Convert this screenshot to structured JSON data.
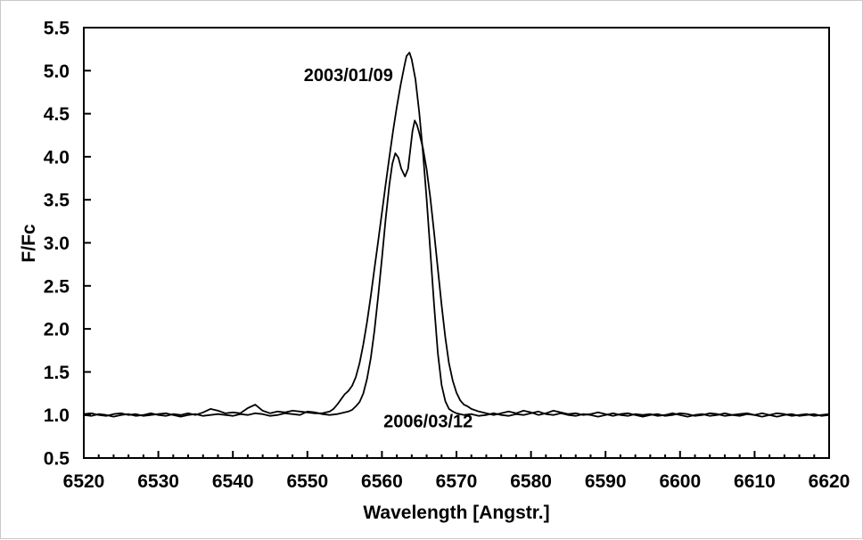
{
  "figure": {
    "background": "#ffffff",
    "frame_color": "#000000",
    "line_color": "#000000",
    "text_color": "#000000"
  },
  "chart_data": {
    "type": "line",
    "title": "",
    "xlabel": "Wavelength [Angstr.]",
    "ylabel": "F/Fc",
    "xlim": [
      6520,
      6620
    ],
    "ylim": [
      0.5,
      5.5
    ],
    "xticks": [
      6520,
      6530,
      6540,
      6550,
      6560,
      6570,
      6580,
      6590,
      6600,
      6610,
      6620
    ],
    "xminor_step": 2,
    "yticks": [
      0.5,
      1.0,
      1.5,
      2.0,
      2.5,
      3.0,
      3.5,
      4.0,
      4.5,
      5.0,
      5.5
    ],
    "grid": false,
    "legend_position": "none",
    "annotations": [
      {
        "text": "2003/01/09",
        "x": 6555.5,
        "y": 4.95
      },
      {
        "text": "2006/03/12",
        "x": 6566.2,
        "y": 0.93
      }
    ],
    "series": [
      {
        "name": "2003/01/09",
        "peak": {
          "x": 6563.5,
          "y": 5.21
        },
        "points": [
          [
            6520,
            1.0
          ],
          [
            6521,
            0.99
          ],
          [
            6522,
            1.01
          ],
          [
            6523,
            1.0
          ],
          [
            6524,
            0.98
          ],
          [
            6525,
            1.0
          ],
          [
            6526,
            1.01
          ],
          [
            6527,
            0.99
          ],
          [
            6528,
            1.0
          ],
          [
            6529,
            1.02
          ],
          [
            6530,
            1.0
          ],
          [
            6531,
            0.99
          ],
          [
            6532,
            1.01
          ],
          [
            6533,
            1.0
          ],
          [
            6534,
            1.02
          ],
          [
            6535,
            1.0
          ],
          [
            6536,
            1.03
          ],
          [
            6537,
            1.07
          ],
          [
            6538,
            1.05
          ],
          [
            6539,
            1.02
          ],
          [
            6540,
            1.03
          ],
          [
            6541,
            1.02
          ],
          [
            6542,
            1.08
          ],
          [
            6543,
            1.12
          ],
          [
            6544,
            1.05
          ],
          [
            6545,
            1.02
          ],
          [
            6546,
            1.04
          ],
          [
            6547,
            1.03
          ],
          [
            6548,
            1.05
          ],
          [
            6549,
            1.04
          ],
          [
            6550,
            1.03
          ],
          [
            6551,
            1.02
          ],
          [
            6552,
            1.02
          ],
          [
            6553,
            1.04
          ],
          [
            6553.5,
            1.07
          ],
          [
            6554,
            1.12
          ],
          [
            6554.5,
            1.18
          ],
          [
            6555,
            1.24
          ],
          [
            6555.5,
            1.28
          ],
          [
            6556,
            1.34
          ],
          [
            6556.5,
            1.44
          ],
          [
            6557,
            1.6
          ],
          [
            6557.5,
            1.82
          ],
          [
            6558,
            2.08
          ],
          [
            6558.5,
            2.38
          ],
          [
            6559,
            2.7
          ],
          [
            6559.5,
            3.02
          ],
          [
            6560,
            3.35
          ],
          [
            6560.5,
            3.68
          ],
          [
            6561,
            4.0
          ],
          [
            6561.5,
            4.3
          ],
          [
            6562,
            4.58
          ],
          [
            6562.5,
            4.83
          ],
          [
            6563,
            5.05
          ],
          [
            6563.3,
            5.17
          ],
          [
            6563.7,
            5.21
          ],
          [
            6564,
            5.13
          ],
          [
            6564.5,
            4.9
          ],
          [
            6565,
            4.52
          ],
          [
            6565.5,
            4.05
          ],
          [
            6566,
            3.5
          ],
          [
            6566.5,
            2.9
          ],
          [
            6567,
            2.28
          ],
          [
            6567.5,
            1.72
          ],
          [
            6568,
            1.35
          ],
          [
            6568.5,
            1.16
          ],
          [
            6569,
            1.07
          ],
          [
            6569.5,
            1.04
          ],
          [
            6570,
            1.02
          ],
          [
            6571,
            1.0
          ],
          [
            6572,
            1.01
          ],
          [
            6573,
            0.99
          ],
          [
            6574,
            1.0
          ],
          [
            6575,
            1.02
          ],
          [
            6576,
            1.0
          ],
          [
            6577,
            0.99
          ],
          [
            6578,
            1.01
          ],
          [
            6579,
            1.0
          ],
          [
            6580,
            1.02
          ],
          [
            6581,
            1.04
          ],
          [
            6582,
            1.01
          ],
          [
            6583,
            1.0
          ],
          [
            6584,
            1.02
          ],
          [
            6585,
            1.0
          ],
          [
            6586,
            0.99
          ],
          [
            6587,
            1.01
          ],
          [
            6588,
            1.0
          ],
          [
            6589,
            0.98
          ],
          [
            6590,
            1.0
          ],
          [
            6591,
            1.02
          ],
          [
            6592,
            1.0
          ],
          [
            6593,
            0.99
          ],
          [
            6594,
            1.01
          ],
          [
            6595,
            1.0
          ],
          [
            6596,
            1.01
          ],
          [
            6597,
            0.99
          ],
          [
            6598,
            1.0
          ],
          [
            6599,
            1.02
          ],
          [
            6600,
            1.0
          ],
          [
            6601,
            0.98
          ],
          [
            6602,
            1.0
          ],
          [
            6603,
            1.01
          ],
          [
            6604,
            0.99
          ],
          [
            6605,
            1.0
          ],
          [
            6606,
            1.02
          ],
          [
            6607,
            1.0
          ],
          [
            6608,
            0.99
          ],
          [
            6609,
            1.01
          ],
          [
            6610,
            1.0
          ],
          [
            6611,
            1.02
          ],
          [
            6612,
            1.0
          ],
          [
            6613,
            0.98
          ],
          [
            6614,
            1.0
          ],
          [
            6615,
            1.01
          ],
          [
            6616,
            0.99
          ],
          [
            6617,
            1.0
          ],
          [
            6618,
            1.01
          ],
          [
            6619,
            0.99
          ],
          [
            6620,
            1.0
          ]
        ]
      },
      {
        "name": "2006/03/12",
        "peak": {
          "x": 6564.4,
          "y": 4.42
        },
        "points": [
          [
            6520,
            1.01
          ],
          [
            6521,
            1.02
          ],
          [
            6522,
            1.0
          ],
          [
            6523,
            0.99
          ],
          [
            6524,
            1.01
          ],
          [
            6525,
            1.02
          ],
          [
            6526,
            1.0
          ],
          [
            6527,
            1.01
          ],
          [
            6528,
            0.99
          ],
          [
            6529,
            1.0
          ],
          [
            6530,
            1.01
          ],
          [
            6531,
            1.02
          ],
          [
            6532,
            1.0
          ],
          [
            6533,
            0.98
          ],
          [
            6534,
            1.0
          ],
          [
            6535,
            1.01
          ],
          [
            6536,
            0.99
          ],
          [
            6537,
            1.0
          ],
          [
            6538,
            1.01
          ],
          [
            6539,
            1.0
          ],
          [
            6540,
            0.99
          ],
          [
            6541,
            1.01
          ],
          [
            6542,
            1.0
          ],
          [
            6543,
            1.02
          ],
          [
            6544,
            1.01
          ],
          [
            6545,
            0.99
          ],
          [
            6546,
            1.0
          ],
          [
            6547,
            1.02
          ],
          [
            6548,
            1.01
          ],
          [
            6549,
            1.0
          ],
          [
            6550,
            1.04
          ],
          [
            6551,
            1.03
          ],
          [
            6552,
            1.01
          ],
          [
            6553,
            1.0
          ],
          [
            6554,
            1.01
          ],
          [
            6555,
            1.03
          ],
          [
            6555.5,
            1.04
          ],
          [
            6556,
            1.06
          ],
          [
            6556.5,
            1.1
          ],
          [
            6557,
            1.15
          ],
          [
            6557.5,
            1.25
          ],
          [
            6558,
            1.42
          ],
          [
            6558.5,
            1.66
          ],
          [
            6559,
            1.98
          ],
          [
            6559.5,
            2.38
          ],
          [
            6560,
            2.82
          ],
          [
            6560.5,
            3.28
          ],
          [
            6561,
            3.68
          ],
          [
            6561.4,
            3.92
          ],
          [
            6561.8,
            4.04
          ],
          [
            6562.2,
            3.99
          ],
          [
            6562.6,
            3.86
          ],
          [
            6563.1,
            3.77
          ],
          [
            6563.5,
            3.86
          ],
          [
            6563.8,
            4.08
          ],
          [
            6564.1,
            4.3
          ],
          [
            6564.4,
            4.42
          ],
          [
            6564.7,
            4.37
          ],
          [
            6565,
            4.28
          ],
          [
            6565.5,
            4.1
          ],
          [
            6566,
            3.85
          ],
          [
            6566.5,
            3.52
          ],
          [
            6567,
            3.12
          ],
          [
            6567.5,
            2.7
          ],
          [
            6568,
            2.28
          ],
          [
            6568.5,
            1.9
          ],
          [
            6569,
            1.6
          ],
          [
            6569.5,
            1.4
          ],
          [
            6570,
            1.26
          ],
          [
            6570.5,
            1.17
          ],
          [
            6571,
            1.12
          ],
          [
            6571.5,
            1.1
          ],
          [
            6572,
            1.07
          ],
          [
            6573,
            1.04
          ],
          [
            6574,
            1.02
          ],
          [
            6575,
            1.0
          ],
          [
            6576,
            1.02
          ],
          [
            6577,
            1.04
          ],
          [
            6578,
            1.02
          ],
          [
            6579,
            1.05
          ],
          [
            6580,
            1.03
          ],
          [
            6581,
            1.0
          ],
          [
            6582,
            1.02
          ],
          [
            6583,
            1.05
          ],
          [
            6584,
            1.03
          ],
          [
            6585,
            1.01
          ],
          [
            6586,
            1.02
          ],
          [
            6587,
            1.0
          ],
          [
            6588,
            1.01
          ],
          [
            6589,
            1.03
          ],
          [
            6590,
            1.01
          ],
          [
            6591,
            0.99
          ],
          [
            6592,
            1.01
          ],
          [
            6593,
            1.02
          ],
          [
            6594,
            1.0
          ],
          [
            6595,
            0.98
          ],
          [
            6596,
            1.0
          ],
          [
            6597,
            1.01
          ],
          [
            6598,
            0.99
          ],
          [
            6599,
            1.0
          ],
          [
            6600,
            1.02
          ],
          [
            6601,
            1.01
          ],
          [
            6602,
            0.99
          ],
          [
            6603,
            1.0
          ],
          [
            6604,
            1.02
          ],
          [
            6605,
            1.01
          ],
          [
            6606,
            0.99
          ],
          [
            6607,
            1.0
          ],
          [
            6608,
            1.01
          ],
          [
            6609,
            1.02
          ],
          [
            6610,
            1.0
          ],
          [
            6611,
            0.98
          ],
          [
            6612,
            1.0
          ],
          [
            6613,
            1.02
          ],
          [
            6614,
            1.01
          ],
          [
            6615,
            0.99
          ],
          [
            6616,
            1.0
          ],
          [
            6617,
            1.01
          ],
          [
            6618,
            0.99
          ],
          [
            6619,
            1.0
          ],
          [
            6620,
            1.01
          ]
        ]
      }
    ]
  }
}
